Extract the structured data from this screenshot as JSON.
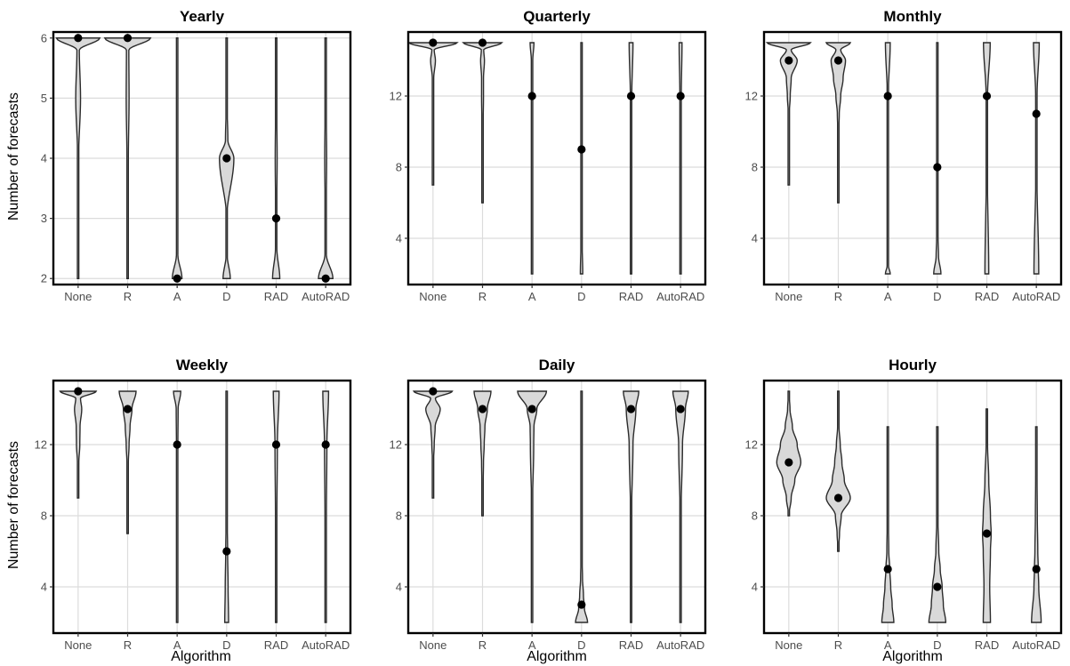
{
  "figure": {
    "ylabel": "Number of forecasts",
    "xlabel": "Algorithm"
  },
  "chart_data": [
    {
      "type": "violin",
      "title": "Yearly",
      "categories": [
        "None",
        "R",
        "A",
        "D",
        "RAD",
        "AutoRAD"
      ],
      "ylim": [
        1.9,
        6.1
      ],
      "yticks": [
        2,
        3,
        4,
        5,
        6
      ],
      "grid": true,
      "medians": [
        6,
        6,
        2,
        4,
        3,
        2
      ],
      "ranges": [
        [
          2,
          6
        ],
        [
          2,
          6
        ],
        [
          2,
          6
        ],
        [
          2,
          6
        ],
        [
          2,
          6
        ],
        [
          2,
          6
        ]
      ],
      "violin_shapes": [
        [
          [
            2,
            0.005
          ],
          [
            4,
            0.02
          ],
          [
            5,
            0.1
          ],
          [
            5.8,
            0.05
          ],
          [
            6,
            0.9
          ]
        ],
        [
          [
            2,
            0.005
          ],
          [
            4,
            0.03
          ],
          [
            5,
            0.06
          ],
          [
            5.8,
            0.05
          ],
          [
            6,
            0.95
          ]
        ],
        [
          [
            2,
            0.2
          ],
          [
            2.4,
            0.03
          ],
          [
            3,
            0.01
          ],
          [
            4,
            0.02
          ],
          [
            5,
            0.01
          ],
          [
            6,
            0.01
          ]
        ],
        [
          [
            2,
            0.15
          ],
          [
            2.4,
            0.02
          ],
          [
            3,
            0.005
          ],
          [
            4,
            0.3
          ],
          [
            4.3,
            0.05
          ],
          [
            5,
            0.01
          ],
          [
            6,
            0.01
          ]
        ],
        [
          [
            2,
            0.15
          ],
          [
            2.5,
            0.03
          ],
          [
            3,
            0.02
          ],
          [
            4,
            0.04
          ],
          [
            5,
            0.02
          ],
          [
            6,
            0.015
          ]
        ],
        [
          [
            2,
            0.3
          ],
          [
            2.4,
            0.03
          ],
          [
            3,
            0.02
          ],
          [
            4,
            0.04
          ],
          [
            5,
            0.02
          ],
          [
            6,
            0.015
          ]
        ]
      ]
    },
    {
      "type": "violin",
      "title": "Quarterly",
      "categories": [
        "None",
        "R",
        "A",
        "D",
        "RAD",
        "AutoRAD"
      ],
      "ylim": [
        1.4,
        15.6
      ],
      "yticks": [
        4,
        8,
        12
      ],
      "grid": true,
      "medians": [
        15,
        15,
        12,
        9,
        12,
        12
      ],
      "ranges": [
        [
          7,
          15
        ],
        [
          6,
          15
        ],
        [
          2,
          15
        ],
        [
          2,
          15
        ],
        [
          2,
          15
        ],
        [
          2,
          15
        ]
      ],
      "violin_shapes": [
        [
          [
            7,
            0.005
          ],
          [
            12,
            0.02
          ],
          [
            13,
            0.03
          ],
          [
            14,
            0.1
          ],
          [
            14.6,
            0.05
          ],
          [
            15,
            1
          ]
        ],
        [
          [
            6,
            0.005
          ],
          [
            10,
            0.02
          ],
          [
            12,
            0.04
          ],
          [
            13,
            0.04
          ],
          [
            14,
            0.08
          ],
          [
            14.6,
            0.05
          ],
          [
            15,
            0.8
          ]
        ],
        [
          [
            2,
            0.01
          ],
          [
            6,
            0.01
          ],
          [
            10,
            0.015
          ],
          [
            12,
            0.03
          ],
          [
            14,
            0.03
          ],
          [
            15,
            0.08
          ]
        ],
        [
          [
            2,
            0.05
          ],
          [
            4,
            0.02
          ],
          [
            8,
            0.015
          ],
          [
            12,
            0.015
          ],
          [
            15,
            0.02
          ]
        ],
        [
          [
            2,
            0.02
          ],
          [
            8,
            0.02
          ],
          [
            12,
            0.03
          ],
          [
            15,
            0.08
          ]
        ],
        [
          [
            2,
            0.02
          ],
          [
            8,
            0.02
          ],
          [
            12,
            0.03
          ],
          [
            15,
            0.06
          ]
        ]
      ]
    },
    {
      "type": "violin",
      "title": "Monthly",
      "categories": [
        "None",
        "R",
        "A",
        "D",
        "RAD",
        "AutoRAD"
      ],
      "ylim": [
        1.4,
        15.6
      ],
      "yticks": [
        4,
        8,
        12
      ],
      "grid": true,
      "medians": [
        14,
        14,
        12,
        8,
        12,
        11
      ],
      "ranges": [
        [
          7,
          15
        ],
        [
          6,
          15
        ],
        [
          2,
          15
        ],
        [
          2,
          15
        ],
        [
          2,
          15
        ],
        [
          2,
          15
        ]
      ],
      "violin_shapes": [
        [
          [
            7,
            0.005
          ],
          [
            11,
            0.02
          ],
          [
            12,
            0.06
          ],
          [
            13,
            0.1
          ],
          [
            14,
            0.35
          ],
          [
            14.6,
            0.1
          ],
          [
            15,
            0.9
          ]
        ],
        [
          [
            6,
            0.005
          ],
          [
            10,
            0.02
          ],
          [
            11,
            0.04
          ],
          [
            12,
            0.1
          ],
          [
            13,
            0.2
          ],
          [
            14,
            0.3
          ],
          [
            14.6,
            0.1
          ],
          [
            15,
            0.5
          ]
        ],
        [
          [
            2,
            0.1
          ],
          [
            2.5,
            0.02
          ],
          [
            8,
            0.01
          ],
          [
            12,
            0.02
          ],
          [
            15,
            0.1
          ]
        ],
        [
          [
            2,
            0.15
          ],
          [
            3,
            0.05
          ],
          [
            4,
            0.03
          ],
          [
            5,
            0.01
          ],
          [
            8,
            0.01
          ],
          [
            12,
            0.01
          ],
          [
            15,
            0.03
          ]
        ],
        [
          [
            2,
            0.08
          ],
          [
            8,
            0.02
          ],
          [
            12,
            0.03
          ],
          [
            15,
            0.14
          ]
        ],
        [
          [
            2,
            0.1
          ],
          [
            8,
            0.02
          ],
          [
            12,
            0.03
          ],
          [
            15,
            0.12
          ]
        ]
      ]
    },
    {
      "type": "violin",
      "title": "Weekly",
      "categories": [
        "None",
        "R",
        "A",
        "D",
        "RAD",
        "AutoRAD"
      ],
      "ylim": [
        1.4,
        15.6
      ],
      "yticks": [
        4,
        8,
        12
      ],
      "grid": true,
      "medians": [
        15,
        14,
        12,
        6,
        12,
        12
      ],
      "ranges": [
        [
          9,
          15
        ],
        [
          7,
          15
        ],
        [
          2,
          15
        ],
        [
          2,
          15
        ],
        [
          2,
          15
        ],
        [
          2,
          15
        ]
      ],
      "violin_shapes": [
        [
          [
            9,
            0.005
          ],
          [
            11,
            0.03
          ],
          [
            12,
            0.07
          ],
          [
            13,
            0.08
          ],
          [
            14,
            0.15
          ],
          [
            14.6,
            0.1
          ],
          [
            15,
            0.75
          ]
        ],
        [
          [
            7,
            0.005
          ],
          [
            11,
            0.03
          ],
          [
            12,
            0.06
          ],
          [
            13,
            0.1
          ],
          [
            14,
            0.18
          ],
          [
            15,
            0.35
          ]
        ],
        [
          [
            2,
            0.01
          ],
          [
            8,
            0.01
          ],
          [
            12,
            0.03
          ],
          [
            14,
            0.04
          ],
          [
            15,
            0.15
          ]
        ],
        [
          [
            2,
            0.08
          ],
          [
            4,
            0.06
          ],
          [
            6,
            0.04
          ],
          [
            8,
            0.02
          ],
          [
            12,
            0.015
          ],
          [
            15,
            0.02
          ]
        ],
        [
          [
            2,
            0.02
          ],
          [
            8,
            0.03
          ],
          [
            12,
            0.05
          ],
          [
            15,
            0.12
          ]
        ],
        [
          [
            2,
            0.02
          ],
          [
            8,
            0.03
          ],
          [
            12,
            0.05
          ],
          [
            15,
            0.12
          ]
        ]
      ]
    },
    {
      "type": "violin",
      "title": "Daily",
      "categories": [
        "None",
        "R",
        "A",
        "D",
        "RAD",
        "AutoRAD"
      ],
      "ylim": [
        1.4,
        15.6
      ],
      "yticks": [
        4,
        8,
        12
      ],
      "grid": true,
      "medians": [
        15,
        14,
        14,
        3,
        14,
        14
      ],
      "ranges": [
        [
          9,
          15
        ],
        [
          8,
          15
        ],
        [
          2,
          15
        ],
        [
          2,
          15
        ],
        [
          2,
          15
        ],
        [
          2,
          15
        ]
      ],
      "violin_shapes": [
        [
          [
            9,
            0.005
          ],
          [
            11,
            0.02
          ],
          [
            12,
            0.05
          ],
          [
            13,
            0.09
          ],
          [
            14,
            0.3
          ],
          [
            14.6,
            0.1
          ],
          [
            15,
            0.8
          ]
        ],
        [
          [
            8,
            0.005
          ],
          [
            10,
            0.03
          ],
          [
            11,
            0.04
          ],
          [
            12,
            0.07
          ],
          [
            13,
            0.1
          ],
          [
            14,
            0.2
          ],
          [
            15,
            0.35
          ]
        ],
        [
          [
            2,
            0.01
          ],
          [
            8,
            0.01
          ],
          [
            12,
            0.07
          ],
          [
            13,
            0.08
          ],
          [
            14,
            0.2
          ],
          [
            15,
            0.6
          ]
        ],
        [
          [
            2,
            0.25
          ],
          [
            2.8,
            0.12
          ],
          [
            3.5,
            0.08
          ],
          [
            4.5,
            0.04
          ],
          [
            6,
            0.01
          ],
          [
            15,
            0.005
          ]
        ],
        [
          [
            2,
            0.01
          ],
          [
            8,
            0.02
          ],
          [
            12,
            0.08
          ],
          [
            14,
            0.2
          ],
          [
            15,
            0.32
          ]
        ],
        [
          [
            2,
            0.01
          ],
          [
            8,
            0.02
          ],
          [
            12,
            0.08
          ],
          [
            14,
            0.2
          ],
          [
            15,
            0.32
          ]
        ]
      ]
    },
    {
      "type": "violin",
      "title": "Hourly",
      "categories": [
        "None",
        "R",
        "A",
        "D",
        "RAD",
        "AutoRAD"
      ],
      "ylim": [
        1.4,
        15.6
      ],
      "yticks": [
        4,
        8,
        12
      ],
      "grid": true,
      "medians": [
        11,
        9,
        5,
        4,
        7,
        5
      ],
      "ranges": [
        [
          8,
          15
        ],
        [
          6,
          15
        ],
        [
          2,
          13
        ],
        [
          2,
          13
        ],
        [
          2,
          14
        ],
        [
          2,
          13
        ]
      ],
      "violin_shapes": [
        [
          [
            8,
            0.005
          ],
          [
            9,
            0.1
          ],
          [
            10,
            0.25
          ],
          [
            11,
            0.5
          ],
          [
            12,
            0.35
          ],
          [
            13,
            0.15
          ],
          [
            14,
            0.05
          ],
          [
            15,
            0.005
          ]
        ],
        [
          [
            6,
            0.005
          ],
          [
            7,
            0.05
          ],
          [
            8,
            0.12
          ],
          [
            9,
            0.5
          ],
          [
            10,
            0.25
          ],
          [
            11,
            0.15
          ],
          [
            12,
            0.08
          ],
          [
            13,
            0.03
          ],
          [
            15,
            0.005
          ]
        ],
        [
          [
            2,
            0.25
          ],
          [
            3,
            0.18
          ],
          [
            4,
            0.12
          ],
          [
            5,
            0.08
          ],
          [
            6,
            0.04
          ],
          [
            8,
            0.02
          ],
          [
            10,
            0.01
          ],
          [
            13,
            0.005
          ]
        ],
        [
          [
            2,
            0.35
          ],
          [
            3,
            0.25
          ],
          [
            4,
            0.2
          ],
          [
            5,
            0.12
          ],
          [
            6,
            0.06
          ],
          [
            8,
            0.02
          ],
          [
            10,
            0.01
          ],
          [
            13,
            0.005
          ]
        ],
        [
          [
            2,
            0.15
          ],
          [
            4,
            0.12
          ],
          [
            6,
            0.15
          ],
          [
            7,
            0.18
          ],
          [
            8,
            0.15
          ],
          [
            10,
            0.08
          ],
          [
            12,
            0.03
          ],
          [
            14,
            0.005
          ]
        ],
        [
          [
            2,
            0.2
          ],
          [
            4,
            0.1
          ],
          [
            5,
            0.08
          ],
          [
            6,
            0.06
          ],
          [
            8,
            0.04
          ],
          [
            10,
            0.03
          ],
          [
            12,
            0.02
          ],
          [
            13,
            0.005
          ]
        ]
      ]
    }
  ]
}
